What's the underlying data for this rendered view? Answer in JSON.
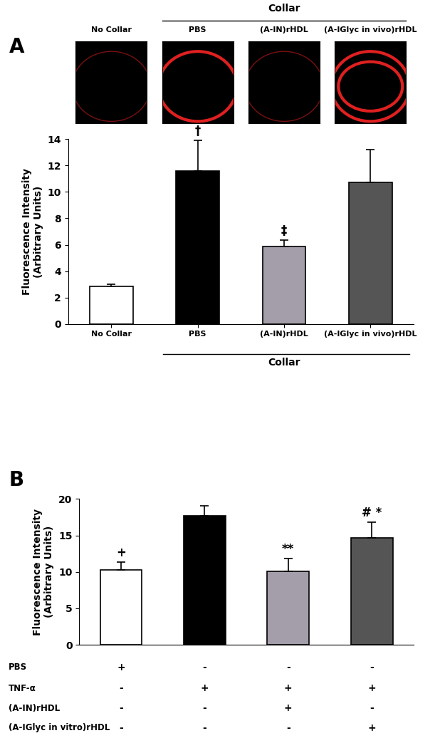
{
  "chart_data": [
    {
      "type": "bar",
      "panel_label": "A",
      "group_label": "Collar",
      "image_labels": [
        "No Collar",
        "PBS",
        "(A-IN)rHDL",
        "(A-IGlyc in vivo)rHDL"
      ],
      "y_label": "Fluorescence Intensity\n(Arbitrary Units)",
      "categories": [
        "No Collar",
        "PBS",
        "(A-IN)rHDL",
        "(A-IGlyc in vivo)rHDL"
      ],
      "values": [
        2.85,
        11.6,
        5.85,
        10.75
      ],
      "errors": [
        0.15,
        2.3,
        0.5,
        2.45
      ],
      "colors": [
        "#ffffff",
        "#000000",
        "#a39ea9",
        "#555555"
      ],
      "annotations": [
        null,
        "†",
        "‡",
        null
      ],
      "ylim": [
        0,
        14
      ],
      "yticks": [
        0,
        2,
        4,
        6,
        8,
        10,
        12,
        14
      ]
    },
    {
      "type": "bar",
      "panel_label": "B",
      "y_label": "Fluorescence Intensity\n(Arbitrary Units)",
      "categories": [
        null,
        null,
        null,
        null
      ],
      "tick_labels": "y",
      "values": [
        10.3,
        17.7,
        10.1,
        14.7
      ],
      "errors": [
        1.0,
        1.4,
        1.7,
        2.1
      ],
      "colors": [
        "#ffffff",
        "#000000",
        "#a39ea9",
        "#555555"
      ],
      "annotations": [
        "+",
        null,
        "**",
        "# *"
      ],
      "ylim": [
        0,
        20
      ],
      "yticks": [
        0,
        5,
        10,
        15,
        20
      ],
      "conditions": [
        {
          "label": "PBS",
          "marks": [
            "+",
            "-",
            "-",
            "-"
          ]
        },
        {
          "label": "TNF-α",
          "marks": [
            "-",
            "+",
            "+",
            "+"
          ]
        },
        {
          "label": "(A-IN)rHDL",
          "marks": [
            "-",
            "-",
            "+",
            "-"
          ]
        },
        {
          "label": "(A-IGlyc in vitro)rHDL",
          "marks": [
            "-",
            "-",
            "-",
            "+"
          ]
        }
      ]
    }
  ]
}
